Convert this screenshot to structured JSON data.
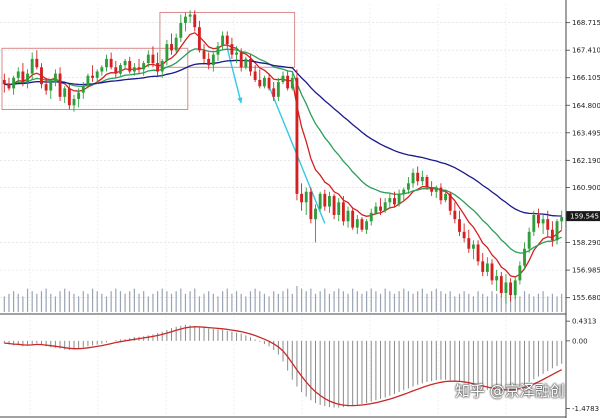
{
  "chart_data": {
    "type": "candlestick",
    "price_axis": {
      "ticks": [
        "168.715",
        "167.410",
        "166.105",
        "164.800",
        "163.495",
        "162.190",
        "160.900",
        "159.545",
        "158.290",
        "156.985",
        "155.680"
      ],
      "range": [
        155.0,
        169.6
      ],
      "current_price": "159.545"
    },
    "macd_axis": {
      "ticks": [
        "0.4313",
        "0.00",
        "-1.4783"
      ],
      "range": [
        -1.6,
        0.5
      ]
    },
    "ohlc": [
      [
        166.0,
        166.3,
        165.4,
        165.8
      ],
      [
        165.8,
        166.1,
        165.5,
        165.6
      ],
      [
        165.6,
        166.2,
        165.3,
        166.1
      ],
      [
        166.1,
        166.6,
        165.9,
        166.4
      ],
      [
        166.4,
        166.8,
        165.7,
        165.9
      ],
      [
        165.9,
        166.5,
        165.6,
        166.3
      ],
      [
        166.3,
        167.3,
        166.0,
        167.0
      ],
      [
        167.0,
        167.4,
        166.5,
        166.6
      ],
      [
        166.6,
        166.8,
        165.6,
        165.8
      ],
      [
        165.8,
        166.1,
        165.3,
        165.5
      ],
      [
        165.5,
        166.0,
        165.1,
        165.9
      ],
      [
        165.9,
        166.5,
        165.7,
        166.3
      ],
      [
        166.3,
        166.6,
        165.0,
        165.2
      ],
      [
        165.2,
        165.7,
        164.9,
        165.6
      ],
      [
        165.6,
        165.8,
        164.6,
        164.8
      ],
      [
        164.8,
        165.3,
        164.5,
        165.1
      ],
      [
        165.1,
        165.6,
        164.7,
        165.4
      ],
      [
        165.4,
        165.9,
        165.1,
        165.7
      ],
      [
        165.7,
        166.3,
        165.6,
        166.2
      ],
      [
        166.2,
        166.7,
        165.9,
        166.1
      ],
      [
        166.1,
        166.5,
        165.8,
        166.4
      ],
      [
        166.4,
        166.7,
        166.2,
        166.6
      ],
      [
        166.6,
        167.2,
        166.4,
        167.0
      ],
      [
        167.0,
        167.3,
        166.5,
        166.6
      ],
      [
        166.6,
        166.9,
        166.1,
        166.3
      ],
      [
        166.3,
        166.8,
        166.2,
        166.7
      ],
      [
        166.7,
        167.0,
        166.5,
        166.9
      ],
      [
        166.9,
        167.1,
        166.3,
        166.4
      ],
      [
        166.4,
        166.8,
        166.2,
        166.6
      ],
      [
        166.6,
        167.0,
        166.3,
        166.5
      ],
      [
        166.5,
        166.9,
        166.2,
        166.8
      ],
      [
        166.8,
        167.4,
        166.6,
        167.2
      ],
      [
        167.2,
        167.6,
        166.6,
        166.8
      ],
      [
        166.8,
        167.3,
        166.2,
        166.4
      ],
      [
        166.4,
        167.0,
        166.1,
        166.9
      ],
      [
        166.9,
        167.9,
        166.7,
        167.7
      ],
      [
        167.7,
        168.2,
        167.2,
        167.4
      ],
      [
        167.4,
        168.2,
        167.3,
        168.0
      ],
      [
        168.0,
        169.1,
        167.8,
        168.7
      ],
      [
        168.7,
        169.2,
        168.3,
        169.0
      ],
      [
        169.0,
        169.3,
        168.7,
        169.1
      ],
      [
        169.1,
        169.3,
        168.3,
        168.5
      ],
      [
        168.5,
        168.8,
        167.3,
        167.4
      ],
      [
        167.4,
        167.7,
        166.8,
        167.0
      ],
      [
        167.0,
        167.3,
        166.5,
        166.7
      ],
      [
        166.7,
        167.3,
        166.4,
        167.2
      ],
      [
        167.2,
        167.8,
        166.9,
        167.6
      ],
      [
        167.6,
        168.3,
        167.4,
        168.1
      ],
      [
        168.1,
        168.3,
        167.5,
        167.7
      ],
      [
        167.7,
        168.0,
        167.0,
        167.2
      ],
      [
        167.2,
        167.6,
        166.8,
        167.3
      ],
      [
        167.3,
        167.5,
        166.4,
        166.6
      ],
      [
        166.6,
        167.1,
        166.5,
        167.0
      ],
      [
        167.0,
        167.2,
        166.2,
        166.4
      ],
      [
        166.4,
        166.7,
        165.9,
        166.0
      ],
      [
        166.0,
        166.5,
        165.6,
        165.7
      ],
      [
        165.7,
        166.2,
        165.6,
        166.1
      ],
      [
        166.1,
        166.3,
        165.5,
        165.6
      ],
      [
        165.6,
        165.9,
        165.0,
        165.2
      ],
      [
        165.2,
        166.1,
        165.0,
        165.9
      ],
      [
        165.9,
        166.4,
        165.8,
        166.2
      ],
      [
        166.2,
        166.4,
        165.5,
        165.6
      ],
      [
        165.6,
        166.3,
        165.5,
        166.1
      ],
      [
        166.1,
        166.5,
        160.3,
        160.6
      ],
      [
        160.6,
        161.1,
        159.8,
        160.2
      ],
      [
        160.2,
        160.9,
        159.6,
        160.7
      ],
      [
        160.7,
        160.9,
        159.2,
        159.4
      ],
      [
        159.4,
        160.1,
        158.3,
        159.9
      ],
      [
        159.9,
        160.7,
        159.8,
        160.6
      ],
      [
        160.6,
        160.8,
        159.8,
        160.0
      ],
      [
        160.0,
        160.7,
        159.7,
        160.5
      ],
      [
        160.5,
        160.6,
        159.4,
        159.6
      ],
      [
        159.6,
        160.4,
        159.3,
        160.2
      ],
      [
        160.2,
        160.5,
        159.1,
        159.3
      ],
      [
        159.3,
        160.0,
        159.0,
        159.8
      ],
      [
        159.8,
        159.9,
        158.9,
        159.0
      ],
      [
        159.0,
        159.6,
        158.7,
        159.4
      ],
      [
        159.4,
        159.5,
        158.8,
        158.9
      ],
      [
        158.9,
        159.4,
        158.7,
        159.3
      ],
      [
        159.3,
        159.9,
        159.1,
        159.7
      ],
      [
        159.7,
        160.2,
        159.6,
        160.0
      ],
      [
        160.0,
        160.4,
        159.6,
        159.8
      ],
      [
        159.8,
        160.4,
        159.7,
        160.2
      ],
      [
        160.2,
        160.6,
        159.9,
        160.4
      ],
      [
        160.4,
        160.7,
        160.0,
        160.1
      ],
      [
        160.1,
        160.8,
        160.0,
        160.6
      ],
      [
        160.6,
        160.9,
        160.3,
        160.8
      ],
      [
        160.8,
        161.4,
        160.6,
        161.1
      ],
      [
        161.1,
        161.8,
        160.9,
        161.6
      ],
      [
        161.6,
        161.9,
        161.0,
        161.2
      ],
      [
        161.2,
        161.7,
        161.0,
        161.4
      ],
      [
        161.4,
        161.5,
        160.8,
        160.9
      ],
      [
        160.9,
        161.2,
        160.5,
        160.7
      ],
      [
        160.7,
        161.0,
        160.4,
        160.9
      ],
      [
        160.9,
        161.1,
        160.1,
        160.3
      ],
      [
        160.3,
        160.8,
        160.2,
        160.6
      ],
      [
        160.6,
        160.7,
        159.6,
        159.8
      ],
      [
        159.8,
        160.2,
        159.2,
        159.4
      ],
      [
        159.4,
        159.8,
        158.6,
        158.8
      ],
      [
        158.8,
        159.2,
        158.3,
        158.5
      ],
      [
        158.5,
        158.9,
        157.8,
        158.0
      ],
      [
        158.0,
        158.4,
        157.5,
        158.2
      ],
      [
        158.2,
        158.4,
        157.2,
        157.4
      ],
      [
        157.4,
        157.8,
        156.7,
        156.9
      ],
      [
        156.9,
        157.6,
        156.7,
        157.3
      ],
      [
        157.3,
        157.5,
        156.3,
        156.5
      ],
      [
        156.5,
        157.0,
        156.0,
        156.7
      ],
      [
        156.7,
        156.9,
        155.7,
        155.9
      ],
      [
        155.9,
        156.8,
        155.4,
        156.4
      ],
      [
        156.4,
        156.6,
        155.5,
        155.8
      ],
      [
        155.8,
        156.7,
        155.6,
        156.5
      ],
      [
        156.5,
        157.4,
        156.3,
        157.2
      ],
      [
        157.2,
        158.3,
        157.0,
        158.0
      ],
      [
        158.0,
        159.0,
        157.8,
        158.8
      ],
      [
        158.8,
        159.8,
        158.6,
        159.6
      ],
      [
        159.6,
        159.9,
        159.0,
        159.2
      ],
      [
        159.2,
        159.6,
        158.7,
        159.4
      ],
      [
        159.4,
        159.8,
        158.6,
        158.9
      ],
      [
        158.9,
        159.3,
        158.1,
        158.4
      ],
      [
        158.4,
        159.4,
        158.2,
        159.3
      ],
      [
        159.3,
        159.8,
        158.9,
        159.5
      ]
    ],
    "moving_averages": [
      {
        "name": "fast",
        "color": "#d42020"
      },
      {
        "name": "medium",
        "color": "#2e9e5a"
      },
      {
        "name": "slow",
        "color": "#1a1a8c"
      }
    ],
    "annotations": [
      {
        "type": "rectangle",
        "color": "#d98a8a",
        "from_bar": 0,
        "to_bar": 39,
        "price_top": 167.5,
        "price_bottom": 164.6
      },
      {
        "type": "rectangle",
        "color": "#d98a8a",
        "from_bar": 34,
        "to_bar": 62,
        "price_top": 169.2,
        "price_bottom": 166.6
      },
      {
        "type": "arrow",
        "color": "#32c8e6",
        "from_bar": 48,
        "from_price": 167.5,
        "to_bar": 51,
        "to_price": 164.9
      },
      {
        "type": "line",
        "color": "#32c8e6",
        "from_bar": 57,
        "from_price": 165.7,
        "to_bar": 69,
        "to_price": 159.2
      }
    ],
    "volume": [
      6,
      7,
      8,
      7,
      6,
      9,
      8,
      7,
      8,
      9,
      7,
      6,
      8,
      9,
      8,
      7,
      6,
      8,
      7,
      9,
      8,
      7,
      6,
      8,
      9,
      8,
      7,
      8,
      9,
      7,
      8,
      6,
      7,
      8,
      9,
      8,
      7,
      8,
      9,
      7,
      8,
      9,
      6,
      7,
      8,
      7,
      6,
      8,
      9,
      7,
      8,
      7,
      6,
      8,
      9,
      8,
      7,
      6,
      8,
      7,
      8,
      9,
      7,
      10,
      9,
      8,
      9,
      7,
      8,
      9,
      7,
      8,
      9,
      8,
      7,
      9,
      8,
      7,
      8,
      9,
      8,
      7,
      9,
      8,
      7,
      8,
      9,
      8,
      7,
      8,
      9,
      7,
      8,
      9,
      8,
      7,
      8,
      6,
      7,
      8,
      7,
      6,
      8,
      7,
      6,
      8,
      7,
      6,
      7,
      8,
      7,
      6,
      8,
      7,
      6,
      7,
      8,
      6,
      7,
      6,
      7
    ],
    "macd_histogram": [
      -0.05,
      -0.08,
      -0.1,
      -0.09,
      -0.12,
      -0.1,
      -0.08,
      -0.05,
      -0.09,
      -0.12,
      -0.14,
      -0.15,
      -0.17,
      -0.19,
      -0.2,
      -0.19,
      -0.17,
      -0.15,
      -0.12,
      -0.1,
      -0.08,
      -0.06,
      -0.03,
      0.0,
      0.02,
      0.03,
      0.04,
      0.06,
      0.08,
      0.09,
      0.1,
      0.12,
      0.14,
      0.17,
      0.2,
      0.24,
      0.28,
      0.31,
      0.33,
      0.35,
      0.34,
      0.32,
      0.3,
      0.28,
      0.27,
      0.26,
      0.25,
      0.24,
      0.22,
      0.2,
      0.18,
      0.16,
      0.12,
      0.08,
      0.03,
      -0.02,
      -0.07,
      -0.12,
      -0.2,
      -0.3,
      -0.45,
      -0.65,
      -0.85,
      -1.0,
      -1.12,
      -1.22,
      -1.3,
      -1.36,
      -1.4,
      -1.43,
      -1.45,
      -1.46,
      -1.46,
      -1.45,
      -1.44,
      -1.42,
      -1.4,
      -1.38,
      -1.36,
      -1.33,
      -1.3,
      -1.27,
      -1.24,
      -1.2,
      -1.16,
      -1.12,
      -1.08,
      -1.04,
      -1.0,
      -0.96,
      -0.93,
      -0.9,
      -0.88,
      -0.86,
      -0.85,
      -0.85,
      -0.86,
      -0.88,
      -0.9,
      -0.93,
      -0.96,
      -0.99,
      -1.02,
      -1.05,
      -1.07,
      -1.09,
      -1.1,
      -1.1,
      -1.09,
      -1.07,
      -1.04,
      -1.0,
      -0.95,
      -0.9,
      -0.84,
      -0.78,
      -0.72,
      -0.66,
      -0.6,
      -0.55,
      -0.5
    ],
    "macd_signal_color": "#c82828"
  },
  "watermark": "知乎 @京泽融创"
}
